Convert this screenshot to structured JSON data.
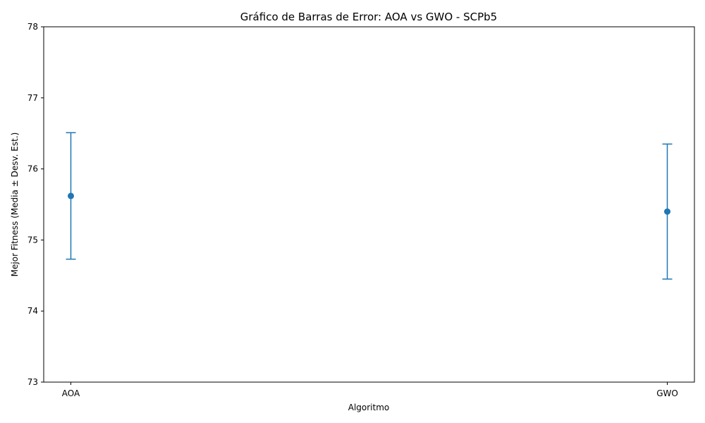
{
  "chart_data": {
    "type": "scatter",
    "title": "Gráfico de Barras de Error: AOA vs GWO - SCPb5",
    "xlabel": "Algoritmo",
    "ylabel": "Mejor Fitness (Media ± Desv. Est.)",
    "categories": [
      "AOA",
      "GWO"
    ],
    "series": [
      {
        "values": [
          75.62,
          75.4
        ],
        "errors": [
          0.89,
          0.95
        ]
      }
    ],
    "ylim": [
      73,
      78
    ],
    "yticks": [
      "73",
      "74",
      "75",
      "76",
      "77",
      "78"
    ],
    "grid": false,
    "color": "#1f77b4"
  }
}
